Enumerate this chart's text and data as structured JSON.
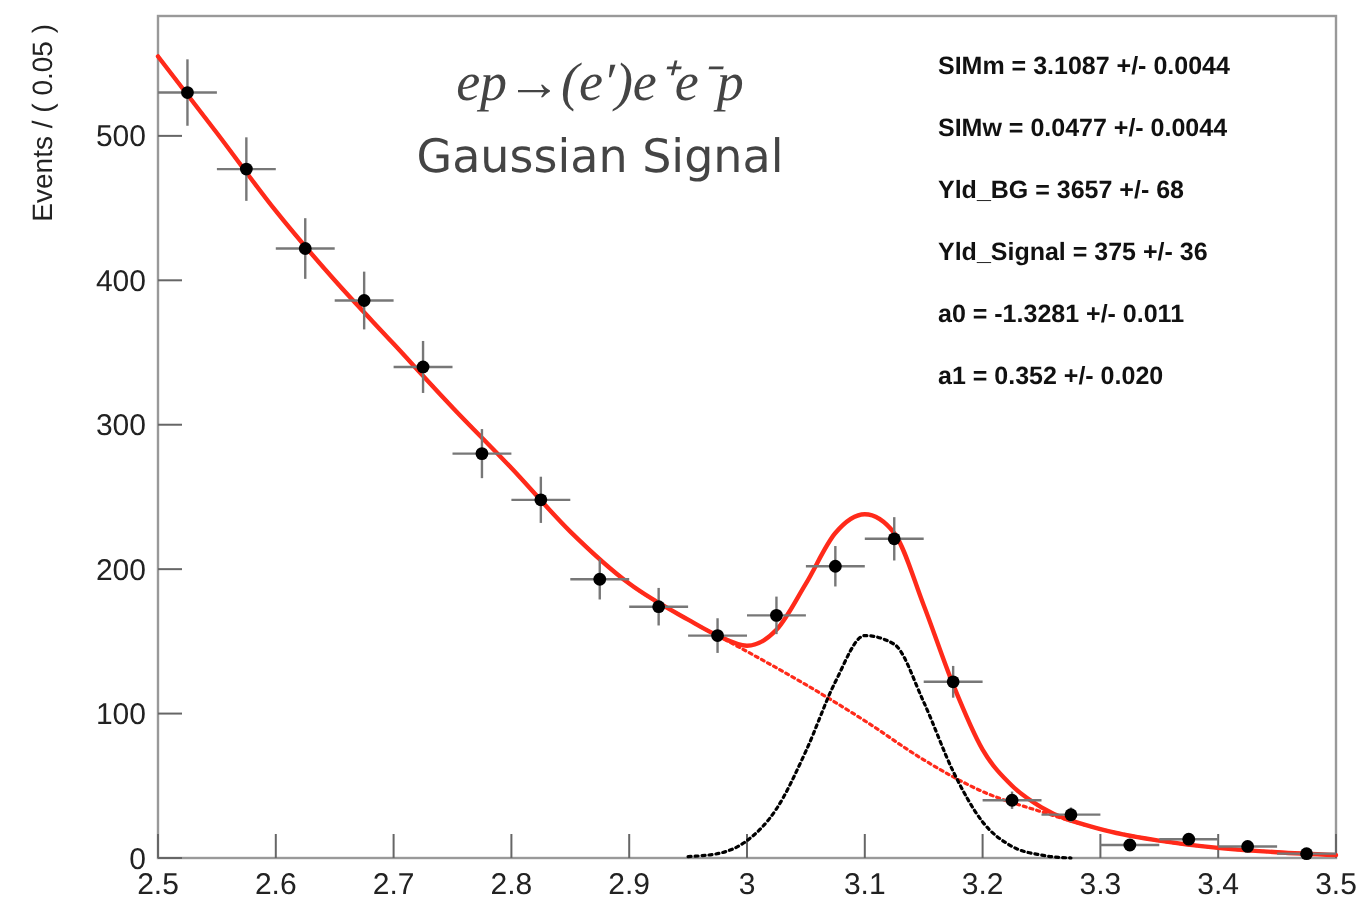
{
  "chart_data": {
    "type": "scatter",
    "ylabel": "Events / ( 0.05 )",
    "annotations": [
      "ep→(e′)e⁺e⁻p",
      "Gaussian Signal",
      "SIMm = 3.1087 +/- 0.0044",
      "SIMw = 0.0477 +/- 0.0044",
      "Yld_BG = 3657 +/- 68",
      "Yld_Signal = 375 +/- 36",
      "a0 = -1.3281 +/- 0.011",
      "a1 = 0.352 +/- 0.020"
    ],
    "xlim": [
      2.5,
      3.5
    ],
    "xticks": [
      2.5,
      2.6,
      2.7,
      2.8,
      2.9,
      3,
      3.1,
      3.2,
      3.3,
      3.4,
      3.5
    ],
    "ylim": [
      0,
      583
    ],
    "yticks": [
      0,
      100,
      200,
      300,
      400,
      500
    ],
    "grid": false,
    "marker": "circle",
    "series": [
      {
        "type": "line",
        "marker": "none",
        "color": "#ff2a1a",
        "line_style": "dotted",
        "x": [
          2.5,
          2.55,
          2.6,
          2.65,
          2.7,
          2.75,
          2.8,
          2.85,
          2.9,
          2.95,
          3.0,
          3.05,
          3.1,
          3.15,
          3.2,
          3.25,
          3.3,
          3.35,
          3.4,
          3.45,
          3.5
        ],
        "values": [
          555,
          502,
          448,
          400,
          356,
          312,
          270,
          226,
          190,
          165,
          143,
          120,
          95,
          68,
          46,
          32,
          20,
          12,
          7,
          4,
          2
        ]
      },
      {
        "type": "line",
        "marker": "none",
        "color": "#000000",
        "line_style": "dotted",
        "x": [
          2.95,
          2.975,
          3.0,
          3.025,
          3.05,
          3.075,
          3.1,
          3.125,
          3.15,
          3.175,
          3.2,
          3.225,
          3.25,
          3.275
        ],
        "values": [
          1,
          3,
          12,
          34,
          74,
          122,
          154,
          148,
          108,
          60,
          25,
          8,
          2,
          0
        ]
      },
      {
        "type": "line",
        "marker": "none",
        "color": "#ff2a1a",
        "line_style": "solid",
        "x": [
          2.5,
          2.55,
          2.6,
          2.65,
          2.7,
          2.75,
          2.8,
          2.85,
          2.9,
          2.95,
          2.975,
          3.0,
          3.025,
          3.05,
          3.075,
          3.1,
          3.125,
          3.15,
          3.175,
          3.2,
          3.225,
          3.25,
          3.3,
          3.35,
          3.4,
          3.45,
          3.5
        ],
        "values": [
          555,
          502,
          448,
          400,
          356,
          312,
          270,
          226,
          190,
          165,
          154,
          147,
          158,
          190,
          225,
          238,
          225,
          175,
          120,
          75,
          50,
          35,
          20,
          12,
          7,
          4,
          2
        ]
      },
      {
        "color": "#000000",
        "x": [
          2.525,
          2.575,
          2.625,
          2.675,
          2.725,
          2.775,
          2.825,
          2.875,
          2.925,
          2.975,
          3.025,
          3.075,
          3.125,
          3.175,
          3.225,
          3.275,
          3.325,
          3.375,
          3.425,
          3.475
        ],
        "values": [
          530,
          477,
          422,
          386,
          340,
          280,
          248,
          193,
          174,
          154,
          168,
          202,
          221,
          122,
          40,
          30,
          9,
          13,
          8,
          3
        ],
        "errors": [
          23,
          22,
          21,
          20,
          18,
          17,
          16,
          14,
          13,
          12,
          13,
          14,
          15,
          11,
          6,
          5,
          3,
          4,
          3,
          2
        ],
        "xerrors": [
          0.025,
          0.025,
          0.025,
          0.025,
          0.025,
          0.025,
          0.025,
          0.025,
          0.025,
          0.025,
          0.025,
          0.025,
          0.025,
          0.025,
          0.025,
          0.025,
          0.025,
          0.025,
          0.025,
          0.025
        ]
      }
    ]
  }
}
